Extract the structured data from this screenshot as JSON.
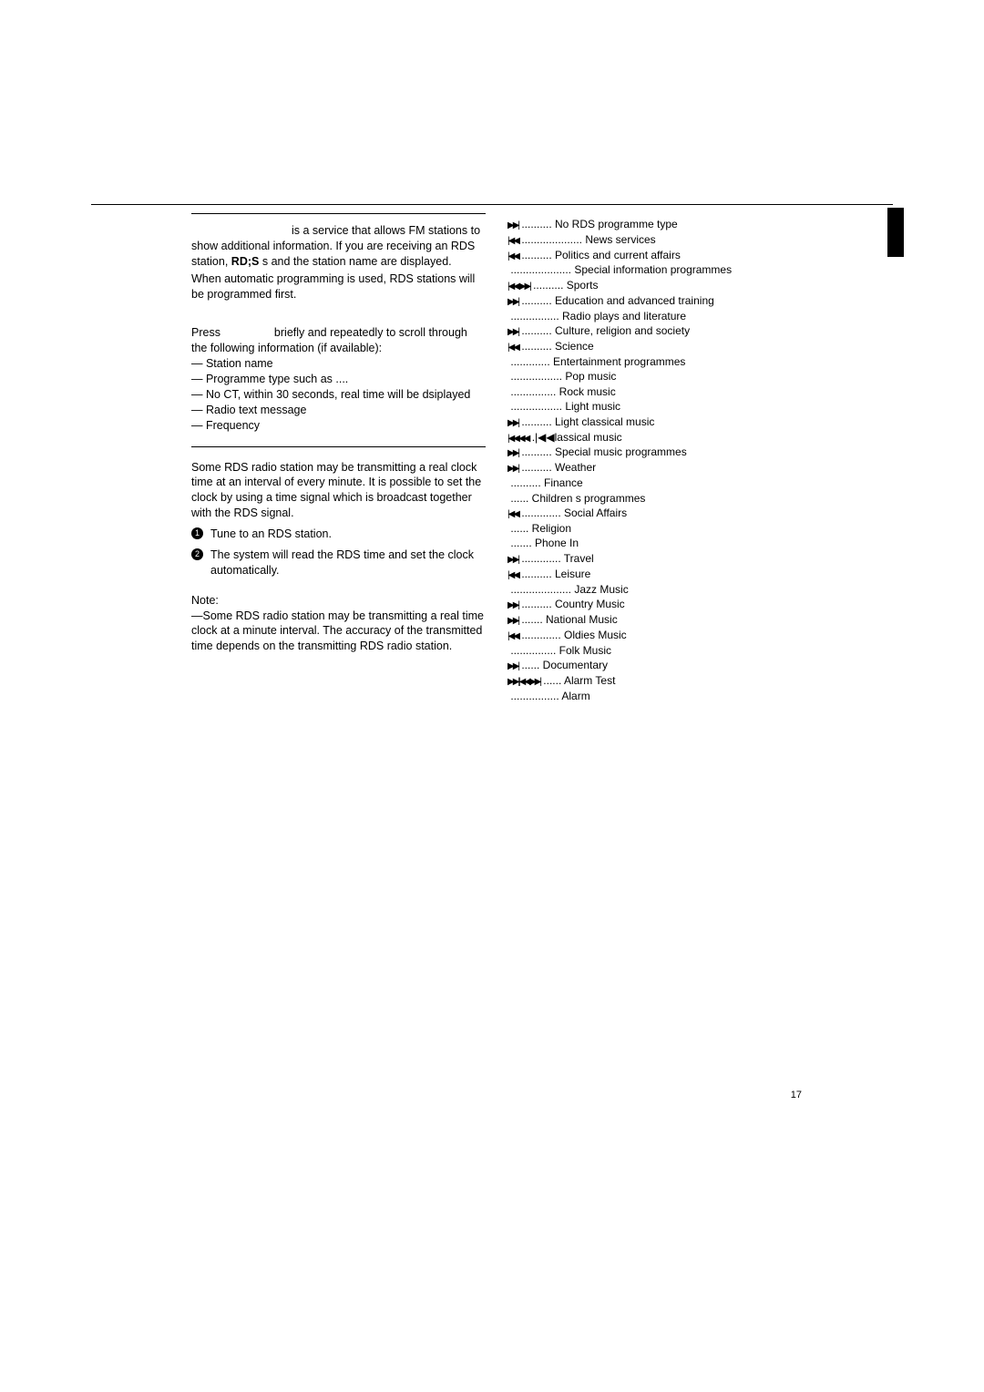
{
  "page_number": "17",
  "left": {
    "intro_p1": "is a service that allows FM stations to show additional information. If you are receiving an RDS station,",
    "intro_p1_mid": "s and the station name are displayed.",
    "intro_p2": "When automatic programming is used, RDS stations will be programmed first.",
    "scroll_lead": "Press",
    "scroll_tail": "briefly and repeatedly to scroll through the following information (if available):",
    "scroll_items": [
      "— Station name",
      "— Programme type such as  ....",
      "— No CT, within 30 seconds, real time will be dsiplayed",
      "—   Radio text message",
      "— Frequency"
    ],
    "clock_p": "Some RDS radio station may be transmitting a real clock time at an interval of every minute.  It is possible to set the clock by using a time signal which is broadcast together with the RDS signal.",
    "step1": "Tune to an RDS station.",
    "step2": "The system will read the RDS time and set the clock automatically.",
    "note_title": "Note:",
    "note_body": "—Some RDS radio station may be transmitting a real time clock at a minute interval. The accuracy of the transmitted time depends on the transmitting RDS radio station."
  },
  "pty": [
    {
      "icon": "▶▶|",
      "label": ".......... No RDS programme type"
    },
    {
      "icon": "|◀◀",
      "label": ".................... News services"
    },
    {
      "icon": "  |◀◀",
      "label": ".......... Politics and current affairs"
    },
    {
      "icon": "",
      "label": "   .................... Special information programmes"
    },
    {
      "icon": "|◀◀  ▶▶|",
      "label": ".......... Sports"
    },
    {
      "icon": "  ▶▶|",
      "label": "  .......... Education and advanced training"
    },
    {
      "icon": "",
      "label": "         ................ Radio plays and literature"
    },
    {
      "icon": "▶▶|",
      "label": "     .......... Culture, religion and society"
    },
    {
      "icon": "|◀◀",
      "label": "       .......... Science"
    },
    {
      "icon": "",
      "label": "         ............. Entertainment programmes"
    },
    {
      "icon": "",
      "label": "       ................. Pop music"
    },
    {
      "icon": "",
      "label": "         ............... Rock music"
    },
    {
      "icon": "",
      "label": "       ................. Light music"
    },
    {
      "icon": "  ▶▶|",
      "label": "  .......... Light classical music"
    },
    {
      "icon": "|◀◀◀◀",
      "label": ".|◀◀lassical music"
    },
    {
      "icon": "▶▶|",
      "label": "     .......... Special music programmes"
    },
    {
      "icon": "▶▶|",
      "label": "      .......... Weather"
    },
    {
      "icon": "",
      "label": "         .......... Finance"
    },
    {
      "icon": "",
      "label": "          ...... Children s programmes"
    },
    {
      "icon": "|◀◀",
      "label": "      ............. Social Affairs"
    },
    {
      "icon": "",
      "label": "           ...... Religion"
    },
    {
      "icon": "",
      "label": "           ....... Phone In"
    },
    {
      "icon": "▶▶|",
      "label": "    ............. Travel"
    },
    {
      "icon": "  |◀◀",
      "label": "    .......... Leisure"
    },
    {
      "icon": "",
      "label": "       .................... Jazz Music"
    },
    {
      "icon": "  ▶▶|",
      "label": "   .......... Country Music"
    },
    {
      "icon": "▶▶|",
      "label": "       ....... National Music"
    },
    {
      "icon": "  |◀◀",
      "label": " ............. Oldies Music"
    },
    {
      "icon": "",
      "label": "        ............... Folk Music"
    },
    {
      "icon": "  ▶▶|",
      "label": "   ...... Documentary"
    },
    {
      "icon": "▶▶||◀◀▶▶|",
      "label": "...... Alarm Test"
    },
    {
      "icon": "",
      "label": "       ................ Alarm"
    }
  ]
}
